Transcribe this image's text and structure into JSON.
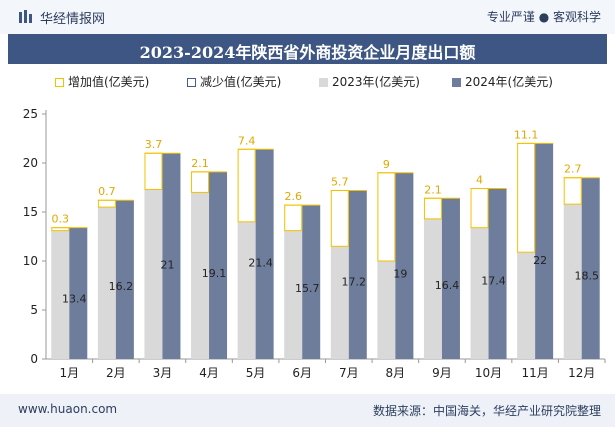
{
  "header": {
    "brand": "华经情报网",
    "tagline": "专业严谨 ● 客观科学"
  },
  "title": "2023-2024年陕西省外商投资企业月度出口额",
  "legend": {
    "increase": "增加值(亿美元)",
    "decrease": "减少值(亿美元)",
    "y2023": "2023年(亿美元)",
    "y2024": "2024年(亿美元)"
  },
  "footer": {
    "website": "www.huaon.com",
    "source": "数据来源：中国海关，华经产业研究院整理"
  },
  "chart_data": {
    "type": "bar",
    "title": "2023-2024年陕西省外商投资企业月度出口额",
    "categories": [
      "1月",
      "2月",
      "3月",
      "4月",
      "5月",
      "6月",
      "7月",
      "8月",
      "9月",
      "10月",
      "11月",
      "12月"
    ],
    "series": [
      {
        "name": "2023年(亿美元)",
        "values": [
          13.1,
          15.5,
          17.3,
          17.0,
          14.0,
          13.1,
          11.5,
          10.0,
          14.3,
          13.4,
          10.9,
          15.8
        ]
      },
      {
        "name": "2024年(亿美元)",
        "values": [
          13.4,
          16.2,
          21,
          19.1,
          21.4,
          15.7,
          17.2,
          19,
          16.4,
          17.4,
          22,
          18.5
        ]
      },
      {
        "name": "增加值(亿美元)",
        "values": [
          0.3,
          0.7,
          3.7,
          2.1,
          7.4,
          2.6,
          5.7,
          9,
          2.1,
          4,
          11.1,
          2.7
        ]
      }
    ],
    "ylim": [
      0,
      25
    ],
    "yticks": [
      0,
      5,
      10,
      15,
      20,
      25
    ],
    "colors": {
      "y2023": "#d9d9d9",
      "y2024": "#6f7d9c",
      "increase": "#f2c200",
      "decrease": "#4a5c84"
    }
  }
}
